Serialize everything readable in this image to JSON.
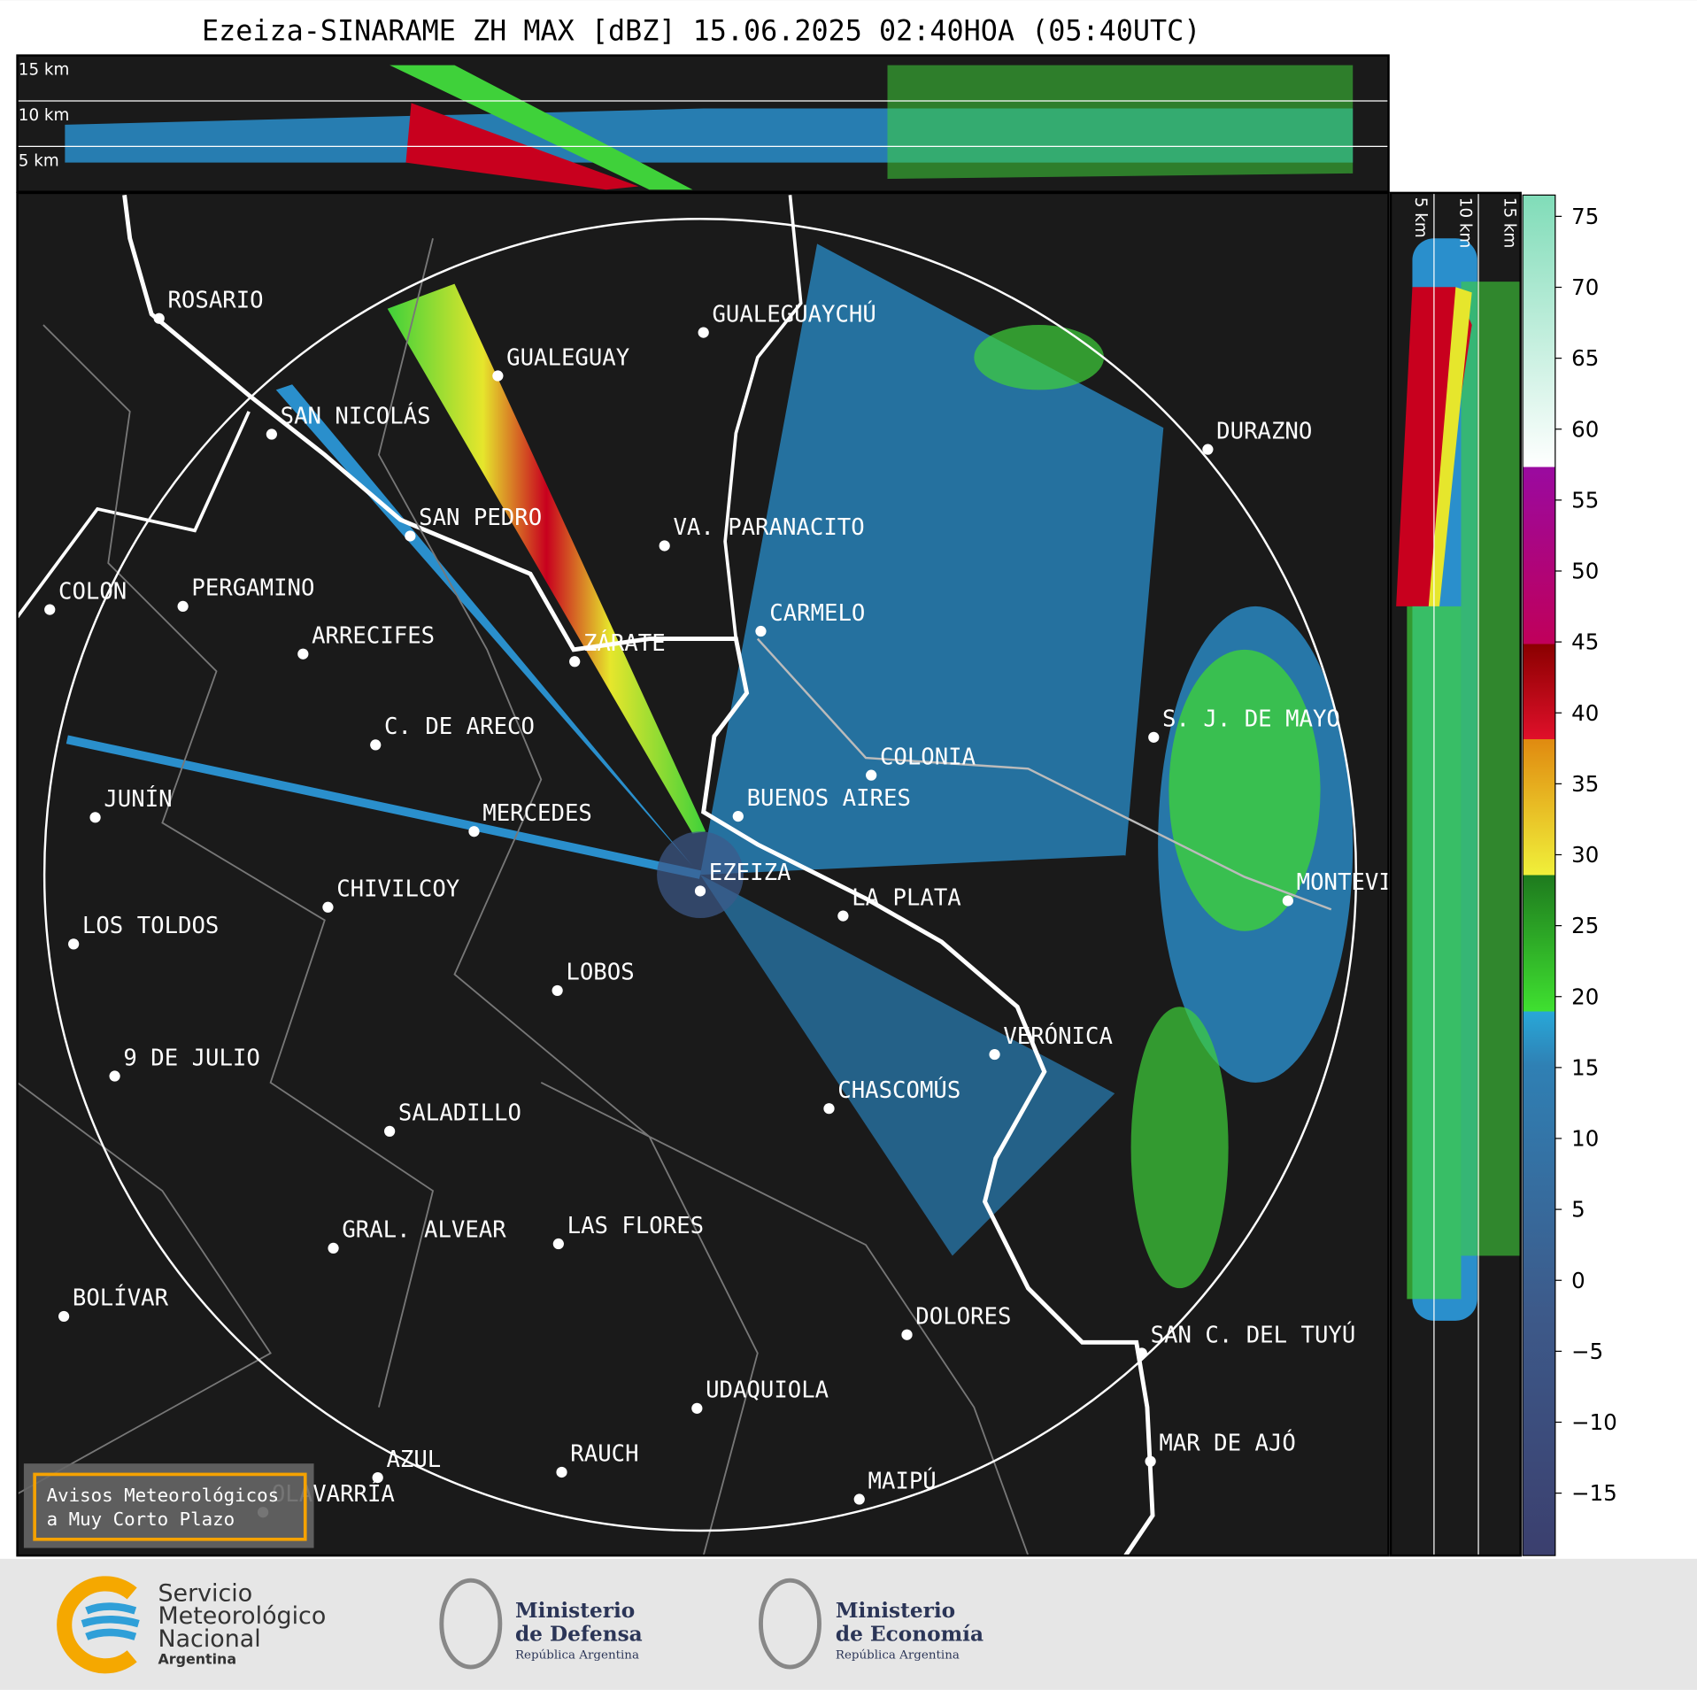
{
  "title": "Ezeiza-SINARAME ZH MAX [dBZ] 15.06.2025 02:40HOA (05:40UTC)",
  "top_panel": {
    "labels": [
      "15 km",
      "10 km",
      "5 km"
    ]
  },
  "side_panel": {
    "labels": [
      "5 km",
      "10 km",
      "15 km"
    ]
  },
  "cities": [
    "ROSARIO",
    "GUALEGUAYCHÚ",
    "GUALEGUAY",
    "SAN NICOLÁS",
    "DURAZNO",
    "SAN PEDRO",
    "VA. PARANACITO",
    "COLON",
    "PERGAMINO",
    "CARMELO",
    "ARRECIFES",
    "ZÁRATE",
    "C. DE ARECO",
    "S. J. DE MAYO",
    "COLONIA",
    "BUENOS AIRES",
    "JUNÍN",
    "MERCEDES",
    "EZEIZA",
    "MONTEVIDEO",
    "CHIVILCOY",
    "LA PLATA",
    "LOS TOLDOS",
    "LOBOS",
    "VERÓNICA",
    "9 DE JULIO",
    "CHASCOMÚS",
    "SALADILLO",
    "GRAL. ALVEAR",
    "LAS FLORES",
    "BOLÍVAR",
    "DOLORES",
    "SAN C. DEL TUYÚ",
    "UDAQUIOLA",
    "MAR DE AJÓ",
    "AZUL",
    "RAUCH",
    "OLAVARRÍA",
    "MAIPÚ"
  ],
  "colorbar": {
    "range": [
      -19.4,
      76.5
    ],
    "ticks": [
      {
        "value": -15,
        "label": "−15"
      },
      {
        "value": -10,
        "label": "−10"
      },
      {
        "value": -5,
        "label": "−5"
      },
      0,
      5,
      10,
      15,
      20,
      25,
      30,
      35,
      40,
      45,
      50,
      55,
      60,
      65,
      70,
      75
    ]
  },
  "notice": [
    "Avisos Meteorológicos",
    "a Muy Corto Plazo"
  ],
  "logos": [
    {
      "lines": [
        "Servicio",
        "Meteorológico",
        "Nacional",
        "Argentina"
      ]
    },
    {
      "lines": [
        "Ministerio",
        "de Defensa",
        "República Argentina"
      ]
    },
    {
      "lines": [
        "Ministerio",
        "de Economía",
        "República Argentina"
      ]
    }
  ]
}
